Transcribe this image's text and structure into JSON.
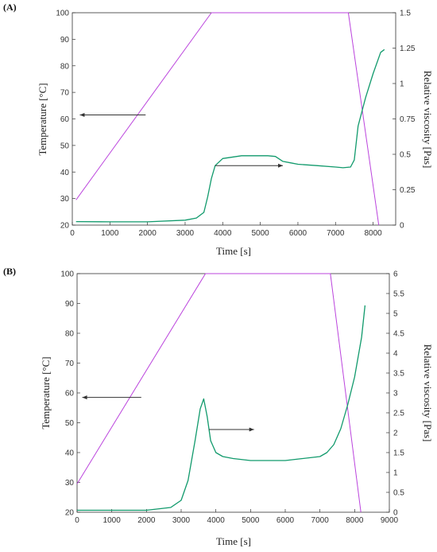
{
  "colors": {
    "temperature": "#bb44dd",
    "viscosity": "#119a6c",
    "arrow": "#333333"
  },
  "chart_data": [
    {
      "type": "line",
      "panel_label": "(A)",
      "xlabel": "Time [s]",
      "ylabel_left": "Temperature [°C]",
      "ylabel_right": "Relative viscosity [Pas]",
      "xlim": [
        0,
        8600
      ],
      "ylim_left": [
        20,
        100
      ],
      "ylim_right": [
        0,
        1.5
      ],
      "xticks": [
        0,
        1000,
        2000,
        3000,
        4000,
        5000,
        6000,
        7000,
        8000
      ],
      "yticks_left": [
        20,
        30,
        40,
        50,
        60,
        70,
        80,
        90,
        100
      ],
      "yticks_right": [
        0,
        0.25,
        0.5,
        0.75,
        1,
        1.25,
        1.5
      ],
      "ytick_labels_right": [
        "0",
        "0.25",
        "0.5",
        "0.75",
        "1",
        "1.25",
        "1.5"
      ],
      "series": [
        {
          "axis": "left",
          "color": "#bb44dd",
          "x": [
            100,
            3700,
            7340,
            8150
          ],
          "y": [
            29.5,
            100,
            100,
            20
          ]
        },
        {
          "axis": "right",
          "color": "#119a6c",
          "x": [
            100,
            1000,
            2000,
            3000,
            3300,
            3500,
            3600,
            3700,
            3800,
            4000,
            4500,
            5000,
            5200,
            5400,
            5600,
            5800,
            6000,
            6500,
            7000,
            7200,
            7400,
            7500,
            7600,
            7800,
            8000,
            8200,
            8300
          ],
          "y": [
            0.025,
            0.023,
            0.023,
            0.035,
            0.05,
            0.09,
            0.2,
            0.33,
            0.42,
            0.47,
            0.49,
            0.49,
            0.49,
            0.485,
            0.45,
            0.44,
            0.43,
            0.42,
            0.41,
            0.405,
            0.41,
            0.46,
            0.7,
            0.9,
            1.07,
            1.22,
            1.24
          ]
        }
      ],
      "arrows": [
        {
          "from_x": 1950,
          "to_x": 200,
          "y": 61.5,
          "axis": "left"
        },
        {
          "from_x": 3800,
          "to_x": 5600,
          "y": 0.42,
          "axis": "right"
        }
      ]
    },
    {
      "type": "line",
      "panel_label": "(B)",
      "xlabel": "Time [s]",
      "ylabel_left": "Temperature [°C]",
      "ylabel_right": "Relative viscosity [Pas]",
      "xlim": [
        0,
        9000
      ],
      "ylim_left": [
        20,
        100
      ],
      "ylim_right": [
        0,
        6
      ],
      "xticks": [
        0,
        1000,
        2000,
        3000,
        4000,
        5000,
        6000,
        7000,
        8000,
        9000
      ],
      "yticks_left": [
        20,
        30,
        40,
        50,
        60,
        70,
        80,
        90,
        100
      ],
      "yticks_right": [
        0,
        0.5,
        1,
        1.5,
        2,
        2.5,
        3,
        3.5,
        4,
        4.5,
        5,
        5.5,
        6
      ],
      "ytick_labels_right": [
        "0",
        "0.5",
        "1",
        "1.5",
        "2",
        "2.5",
        "3",
        "3.5",
        "4",
        "4.5",
        "5",
        "5.5",
        "6"
      ],
      "series": [
        {
          "axis": "left",
          "color": "#bb44dd",
          "x": [
            0,
            3700,
            7300,
            8180
          ],
          "y": [
            29.5,
            100,
            100,
            20
          ]
        },
        {
          "axis": "right",
          "color": "#119a6c",
          "x": [
            0,
            1000,
            2000,
            2700,
            3000,
            3200,
            3400,
            3550,
            3650,
            3750,
            3850,
            4000,
            4200,
            4500,
            5000,
            5500,
            6000,
            6500,
            7000,
            7200,
            7400,
            7600,
            7800,
            8000,
            8200,
            8300
          ],
          "y": [
            0.05,
            0.05,
            0.05,
            0.12,
            0.3,
            0.8,
            1.8,
            2.6,
            2.85,
            2.4,
            1.8,
            1.5,
            1.4,
            1.35,
            1.3,
            1.3,
            1.3,
            1.35,
            1.4,
            1.5,
            1.7,
            2.1,
            2.7,
            3.4,
            4.4,
            5.2
          ]
        }
      ],
      "arrows": [
        {
          "from_x": 1850,
          "to_x": 150,
          "y": 58.5,
          "axis": "left"
        },
        {
          "from_x": 3800,
          "to_x": 5100,
          "y": 2.08,
          "axis": "right"
        }
      ]
    }
  ]
}
